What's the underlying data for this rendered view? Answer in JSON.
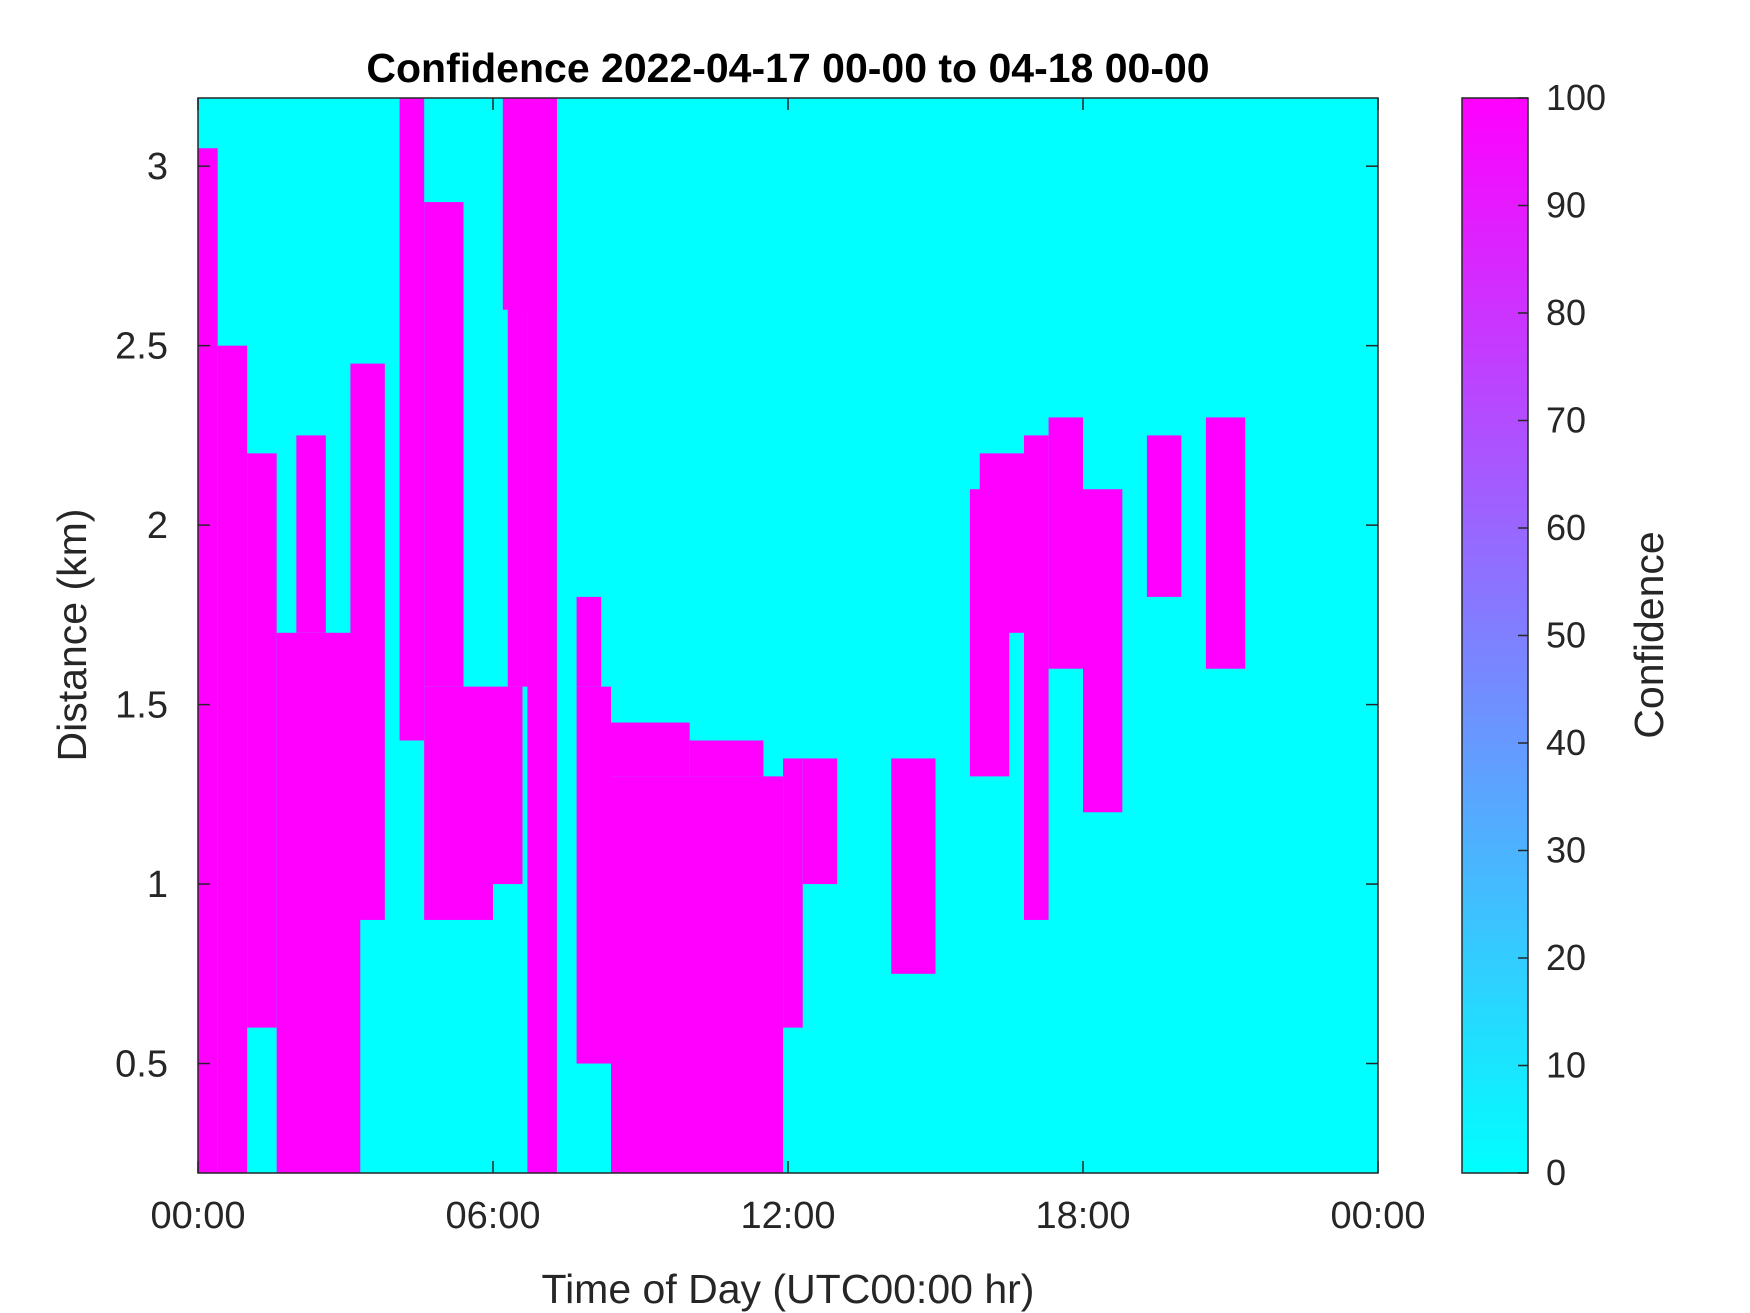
{
  "chart_data": {
    "type": "heatmap",
    "title": "Confidence 2022-04-17 00-00 to 04-18 00-00",
    "xlabel": "Time of Day (UTC00:00 hr)",
    "ylabel": "Distance (km)",
    "xlim": [
      0,
      24
    ],
    "ylim": [
      0.195,
      3.19
    ],
    "x_ticks": [
      0,
      6,
      12,
      18,
      24
    ],
    "x_tick_labels": [
      "00:00",
      "06:00",
      "12:00",
      "18:00",
      "00:00"
    ],
    "y_ticks": [
      0.5,
      1,
      1.5,
      2,
      2.5,
      3
    ],
    "y_tick_labels": [
      "0.5",
      "1",
      "1.5",
      "2",
      "2.5",
      "3"
    ],
    "colorbar": {
      "label": "Confidence",
      "range": [
        0,
        100
      ],
      "ticks": [
        0,
        10,
        20,
        30,
        40,
        50,
        60,
        70,
        80,
        90,
        100
      ],
      "tick_labels": [
        "0",
        "10",
        "20",
        "30",
        "40",
        "50",
        "60",
        "70",
        "80",
        "90",
        "100"
      ],
      "low_color": "#00ffff",
      "high_color": "#ff00ff"
    },
    "background_value": 0,
    "high_confidence_regions": [
      {
        "t_start": 0.0,
        "t_end": 0.4,
        "d_start": 0.195,
        "d_end": 3.05,
        "value": 100
      },
      {
        "t_start": 0.4,
        "t_end": 1.0,
        "d_start": 0.195,
        "d_end": 2.5,
        "value": 100
      },
      {
        "t_start": 1.0,
        "t_end": 1.6,
        "d_start": 0.6,
        "d_end": 2.2,
        "value": 100
      },
      {
        "t_start": 1.6,
        "t_end": 3.3,
        "d_start": 0.195,
        "d_end": 1.7,
        "value": 100
      },
      {
        "t_start": 2.0,
        "t_end": 2.6,
        "d_start": 1.7,
        "d_end": 2.25,
        "value": 100
      },
      {
        "t_start": 3.1,
        "t_end": 3.8,
        "d_start": 0.9,
        "d_end": 2.45,
        "value": 100
      },
      {
        "t_start": 4.1,
        "t_end": 4.6,
        "d_start": 1.4,
        "d_end": 3.19,
        "value": 100
      },
      {
        "t_start": 4.6,
        "t_end": 6.0,
        "d_start": 0.9,
        "d_end": 1.55,
        "value": 100
      },
      {
        "t_start": 4.6,
        "t_end": 5.4,
        "d_start": 1.55,
        "d_end": 2.9,
        "value": 100
      },
      {
        "t_start": 6.0,
        "t_end": 6.6,
        "d_start": 1.0,
        "d_end": 1.55,
        "value": 100
      },
      {
        "t_start": 6.3,
        "t_end": 6.7,
        "d_start": 1.55,
        "d_end": 3.19,
        "value": 100
      },
      {
        "t_start": 6.2,
        "t_end": 7.3,
        "d_start": 2.6,
        "d_end": 3.19,
        "value": 100
      },
      {
        "t_start": 6.7,
        "t_end": 7.3,
        "d_start": 0.195,
        "d_end": 3.19,
        "value": 100
      },
      {
        "t_start": 7.7,
        "t_end": 8.4,
        "d_start": 0.5,
        "d_end": 1.55,
        "value": 100
      },
      {
        "t_start": 7.7,
        "t_end": 8.2,
        "d_start": 1.55,
        "d_end": 1.8,
        "value": 100
      },
      {
        "t_start": 8.4,
        "t_end": 11.9,
        "d_start": 0.195,
        "d_end": 1.3,
        "value": 100
      },
      {
        "t_start": 8.4,
        "t_end": 10.0,
        "d_start": 1.3,
        "d_end": 1.45,
        "value": 100
      },
      {
        "t_start": 10.0,
        "t_end": 11.5,
        "d_start": 1.3,
        "d_end": 1.4,
        "value": 100
      },
      {
        "t_start": 11.9,
        "t_end": 12.3,
        "d_start": 0.6,
        "d_end": 1.35,
        "value": 100
      },
      {
        "t_start": 12.3,
        "t_end": 13.0,
        "d_start": 1.0,
        "d_end": 1.35,
        "value": 100
      },
      {
        "t_start": 14.1,
        "t_end": 15.0,
        "d_start": 0.75,
        "d_end": 1.35,
        "value": 100
      },
      {
        "t_start": 15.7,
        "t_end": 16.5,
        "d_start": 1.3,
        "d_end": 2.1,
        "value": 100
      },
      {
        "t_start": 15.9,
        "t_end": 16.8,
        "d_start": 1.7,
        "d_end": 2.2,
        "value": 100
      },
      {
        "t_start": 16.8,
        "t_end": 17.3,
        "d_start": 0.9,
        "d_end": 2.25,
        "value": 100
      },
      {
        "t_start": 17.3,
        "t_end": 18.0,
        "d_start": 1.6,
        "d_end": 2.3,
        "value": 100
      },
      {
        "t_start": 18.0,
        "t_end": 18.8,
        "d_start": 1.2,
        "d_end": 2.1,
        "value": 100
      },
      {
        "t_start": 19.3,
        "t_end": 20.0,
        "d_start": 1.8,
        "d_end": 2.25,
        "value": 100
      },
      {
        "t_start": 20.5,
        "t_end": 21.3,
        "d_start": 1.6,
        "d_end": 2.3,
        "value": 100
      }
    ],
    "grid": false,
    "legend": "none"
  }
}
